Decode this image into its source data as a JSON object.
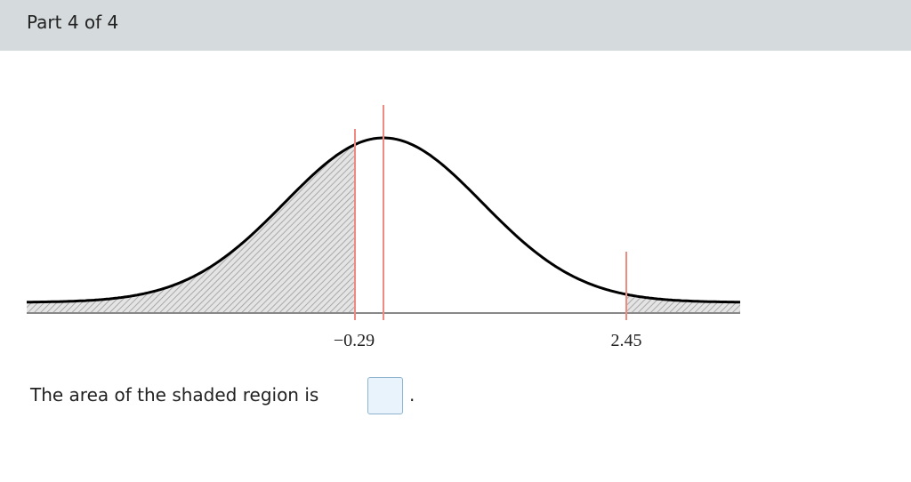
{
  "header": {
    "title": "Part 4 of 4"
  },
  "figure": {
    "marker_labels": [
      "−0.29",
      "2.45"
    ]
  },
  "question": {
    "text": "The area of the shaded region is",
    "end": "."
  }
}
